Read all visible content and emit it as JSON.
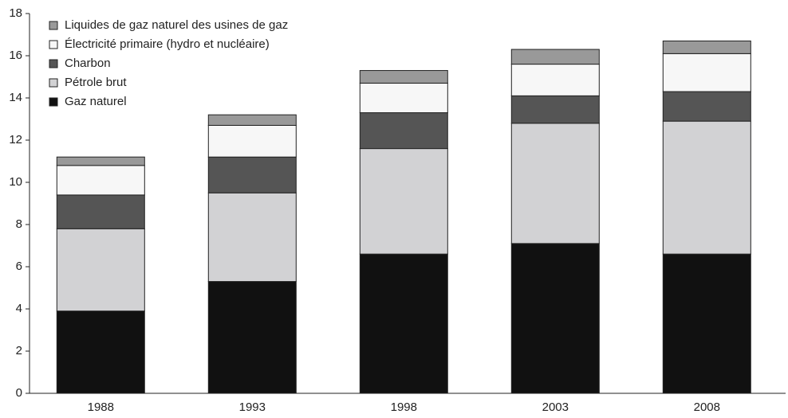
{
  "chart_data": {
    "type": "stacked_bar",
    "categories": [
      "1988",
      "1993",
      "1998",
      "2003",
      "2008"
    ],
    "series": [
      {
        "name": "Gaz naturel",
        "color": "#111111",
        "values": [
          3.9,
          5.3,
          6.6,
          7.1,
          6.6
        ]
      },
      {
        "name": "Pétrole brut",
        "color": "#d2d2d4",
        "values": [
          3.9,
          4.2,
          5.0,
          5.7,
          6.3
        ]
      },
      {
        "name": "Charbon",
        "color": "#555555",
        "values": [
          1.6,
          1.7,
          1.7,
          1.3,
          1.4
        ]
      },
      {
        "name": "Électricité primaire (hydro et nucléaire)",
        "color": "#f7f7f7",
        "values": [
          1.4,
          1.5,
          1.4,
          1.5,
          1.8
        ]
      },
      {
        "name": "Liquides de gaz naturel des usines de gaz",
        "color": "#999999",
        "values": [
          0.4,
          0.5,
          0.6,
          0.7,
          0.6
        ]
      }
    ],
    "ylim": [
      0,
      18
    ],
    "yticks": [
      0,
      2,
      4,
      6,
      8,
      10,
      12,
      14,
      16,
      18
    ],
    "legend": "upper left"
  }
}
